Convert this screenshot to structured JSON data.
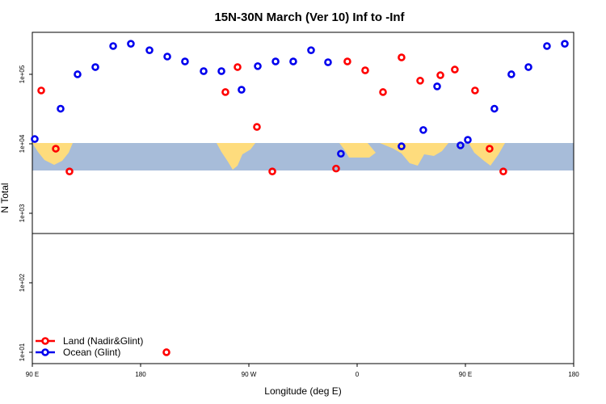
{
  "chart_data": {
    "type": "scatter",
    "title": "15N-30N March (Ver 10)   Inf to -Inf",
    "x_label": "Longitude (deg E)",
    "y_label": "N Total",
    "log_y": true,
    "xlim": [
      90,
      540
    ],
    "xticks": [
      {
        "value": 90,
        "label": "90 E"
      },
      {
        "value": 180,
        "label": "180"
      },
      {
        "value": 270,
        "label": "90 W"
      },
      {
        "value": 360,
        "label": "0"
      },
      {
        "value": 450,
        "label": "90 E"
      },
      {
        "value": 540,
        "label": "180"
      }
    ],
    "ylim": [
      6.87,
      402000
    ],
    "yticks": [
      {
        "value": 10,
        "label": "1e+01"
      },
      {
        "value": 100,
        "label": "1e+02"
      },
      {
        "value": 1000,
        "label": "1e+03"
      },
      {
        "value": 10000,
        "label": "1e+04"
      },
      {
        "value": 100000,
        "label": "1e+05"
      }
    ],
    "legend": "bottom-left",
    "series": [
      {
        "name": "Land (Nadir&Glint)",
        "color": "#ff0000",
        "x": [
          97.4,
          109.5,
          120.9,
          201.5,
          250.5,
          260.6,
          276.7,
          289.5,
          342.5,
          351.9,
          366.7,
          381.5,
          396.9,
          412.4,
          429.2,
          441.2,
          458.0,
          470.1,
          481.5
        ],
        "values": [
          58500,
          8500,
          4000,
          10,
          55500,
          127000,
          17500,
          4000,
          4400,
          153000,
          114000,
          55500,
          175000,
          81000,
          97000,
          117000,
          58500,
          8500,
          4000
        ]
      },
      {
        "name": "Ocean (Glint)",
        "color": "#0000ee",
        "x": [
          92.0,
          113.5,
          127.6,
          142.4,
          157.2,
          171.9,
          187.4,
          202.2,
          216.9,
          232.4,
          247.2,
          263.9,
          277.4,
          292.2,
          306.9,
          321.7,
          335.8,
          346.5,
          396.9,
          415.0,
          426.5,
          445.9,
          452.0,
          474.1,
          488.2,
          502.4,
          517.8,
          532.6
        ],
        "values": [
          11700,
          32000,
          100000,
          127000,
          255000,
          275000,
          222000,
          180000,
          153000,
          111000,
          111000,
          60000,
          131000,
          153000,
          153000,
          222000,
          149000,
          7200,
          9200,
          15800,
          67000,
          9500,
          11400,
          32000,
          100000,
          127000,
          255000,
          275000
        ]
      }
    ]
  }
}
